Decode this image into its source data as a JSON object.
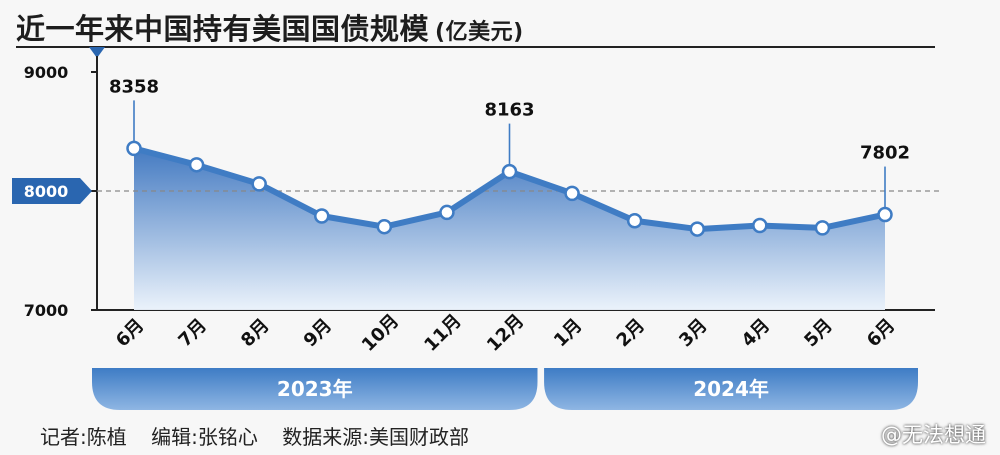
{
  "header": {
    "title": "近一年来中国持有美国国债规模",
    "unit": "(亿美元)"
  },
  "footer": {
    "reporter": "记者:陈植",
    "editor": "编辑:张铭心",
    "source": "数据来源:美国财政部"
  },
  "watermark": "@无法想通",
  "colors": {
    "line": "#3f7cc4",
    "area_top": "#3b74bf",
    "area_bottom": "#eaf2fb",
    "accent": "#2a66b0"
  },
  "chart_data": {
    "type": "area",
    "title": "近一年来中国持有美国国债规模",
    "ylabel": "亿美元",
    "ylim": [
      7000,
      9000
    ],
    "yticks": [
      "9000",
      "8000",
      "7000"
    ],
    "highlight_tick": "8000",
    "categories": [
      "6月",
      "7月",
      "8月",
      "9月",
      "10月",
      "11月",
      "12月",
      "1月",
      "2月",
      "3月",
      "4月",
      "5月",
      "6月"
    ],
    "values": [
      8358,
      8220,
      8060,
      7790,
      7700,
      7820,
      8163,
      7980,
      7750,
      7680,
      7710,
      7690,
      7802
    ],
    "data_labels": [
      {
        "index": 0,
        "text": "8358"
      },
      {
        "index": 6,
        "text": "8163"
      },
      {
        "index": 12,
        "text": "7802"
      }
    ],
    "groups": [
      {
        "label": "2023年",
        "from": 0,
        "to": 6
      },
      {
        "label": "2024年",
        "from": 7,
        "to": 12
      }
    ],
    "reference_line": 8000
  }
}
